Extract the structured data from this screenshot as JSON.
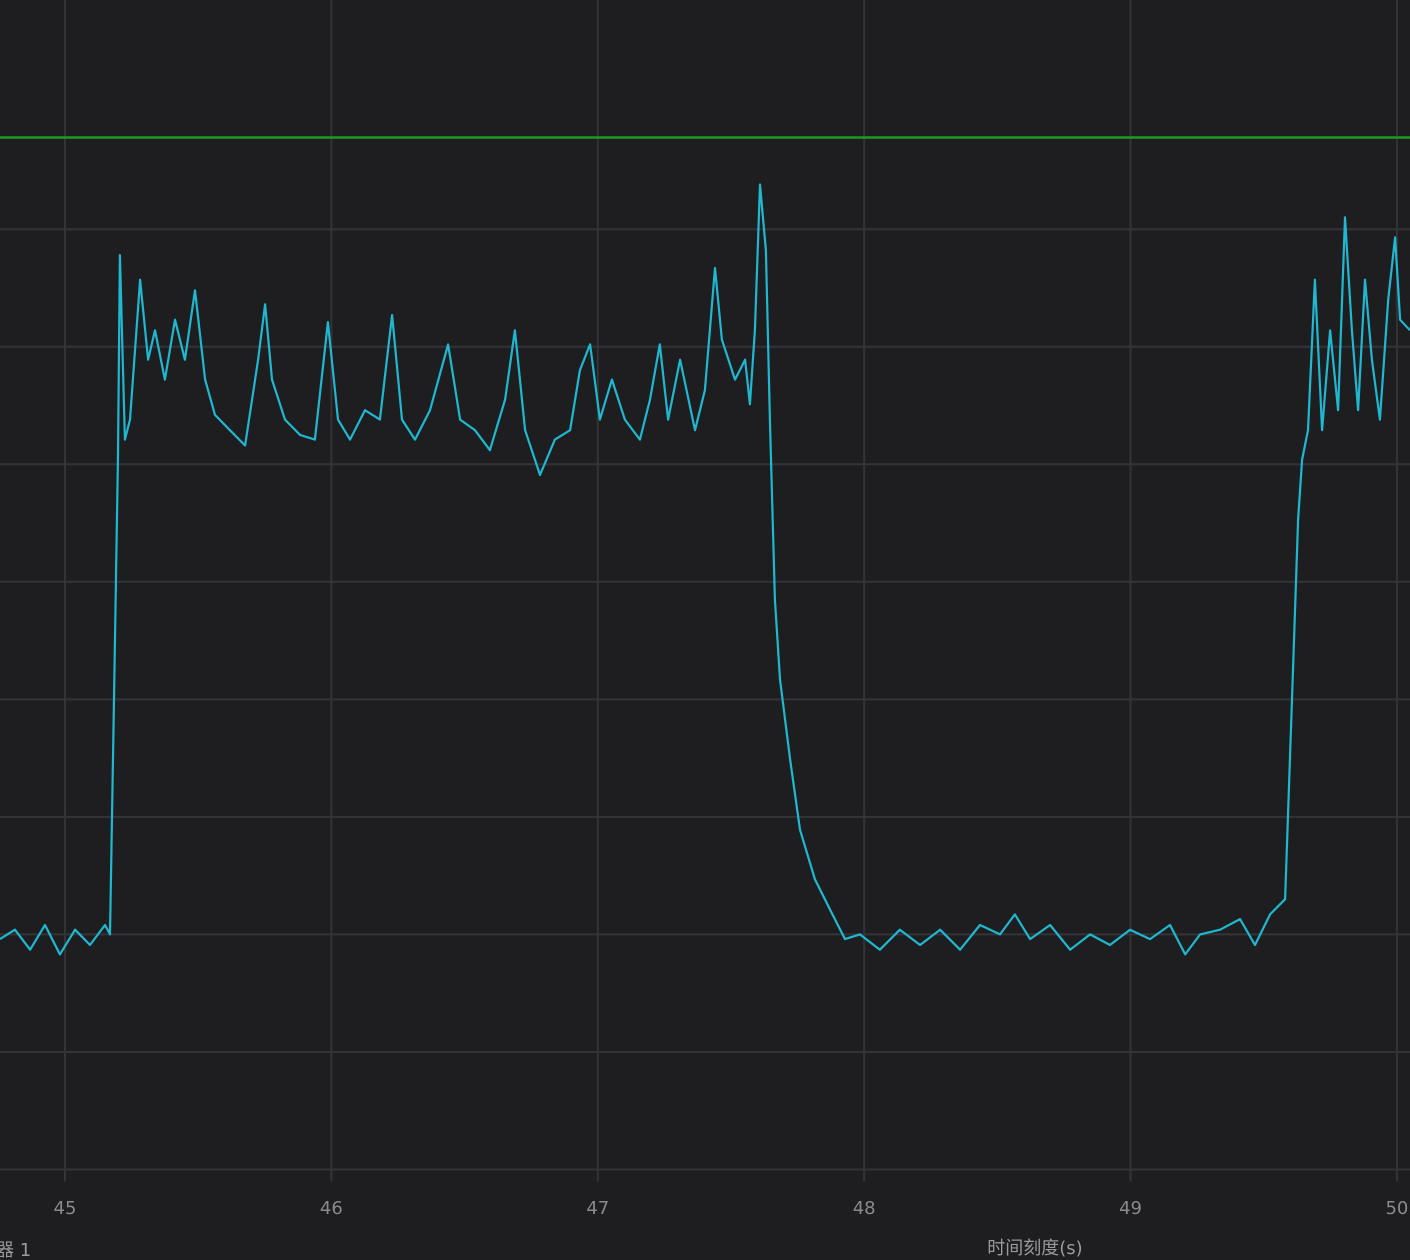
{
  "chart_data": {
    "type": "line",
    "title": "",
    "xlabel": "时间刻度(s)",
    "ylabel": "",
    "corner_label": "器 1",
    "xlim": [
      44.756,
      50.049
    ],
    "ylim": [
      -0.77,
      9.95
    ],
    "x_ticks": [
      45,
      46,
      47,
      48,
      49,
      50
    ],
    "x_tick_labels": [
      "45",
      "46",
      "47",
      "48",
      "49",
      "50"
    ],
    "y_gridlines": [
      0,
      1,
      2,
      3,
      4,
      5,
      6,
      7,
      8
    ],
    "grid": true,
    "legend": "none",
    "threshold": {
      "y": 8.78,
      "color": "#1f9a1f"
    },
    "colors": {
      "background": "#1e1e21",
      "grid": "#343438",
      "series": "#1fb8d0"
    },
    "series": [
      {
        "points": [
          [
            44.756,
            1.96
          ],
          [
            44.812,
            2.04
          ],
          [
            44.869,
            1.87
          ],
          [
            44.925,
            2.08
          ],
          [
            44.981,
            1.83
          ],
          [
            45.038,
            2.04
          ],
          [
            45.094,
            1.91
          ],
          [
            45.15,
            2.08
          ],
          [
            45.169,
            2.0
          ],
          [
            45.184,
            4.0
          ],
          [
            45.199,
            6.08
          ],
          [
            45.206,
            7.78
          ],
          [
            45.225,
            6.21
          ],
          [
            45.244,
            6.38
          ],
          [
            45.282,
            7.57
          ],
          [
            45.312,
            6.89
          ],
          [
            45.338,
            7.14
          ],
          [
            45.375,
            6.72
          ],
          [
            45.413,
            7.23
          ],
          [
            45.45,
            6.89
          ],
          [
            45.488,
            7.48
          ],
          [
            45.526,
            6.72
          ],
          [
            45.563,
            6.42
          ],
          [
            45.619,
            6.29
          ],
          [
            45.676,
            6.16
          ],
          [
            45.725,
            6.89
          ],
          [
            45.751,
            7.36
          ],
          [
            45.777,
            6.72
          ],
          [
            45.826,
            6.38
          ],
          [
            45.882,
            6.25
          ],
          [
            45.938,
            6.21
          ],
          [
            45.987,
            7.21
          ],
          [
            46.025,
            6.38
          ],
          [
            46.07,
            6.21
          ],
          [
            46.126,
            6.46
          ],
          [
            46.182,
            6.38
          ],
          [
            46.228,
            7.27
          ],
          [
            46.265,
            6.38
          ],
          [
            46.314,
            6.21
          ],
          [
            46.37,
            6.46
          ],
          [
            46.438,
            7.02
          ],
          [
            46.483,
            6.38
          ],
          [
            46.539,
            6.29
          ],
          [
            46.595,
            6.12
          ],
          [
            46.652,
            6.55
          ],
          [
            46.689,
            7.14
          ],
          [
            46.727,
            6.29
          ],
          [
            46.783,
            5.91
          ],
          [
            46.839,
            6.21
          ],
          [
            46.896,
            6.29
          ],
          [
            46.933,
            6.8
          ],
          [
            46.971,
            7.02
          ],
          [
            47.008,
            6.38
          ],
          [
            47.053,
            6.72
          ],
          [
            47.102,
            6.38
          ],
          [
            47.158,
            6.21
          ],
          [
            47.196,
            6.55
          ],
          [
            47.233,
            7.02
          ],
          [
            47.264,
            6.38
          ],
          [
            47.309,
            6.89
          ],
          [
            47.365,
            6.29
          ],
          [
            47.402,
            6.63
          ],
          [
            47.44,
            7.67
          ],
          [
            47.466,
            7.06
          ],
          [
            47.515,
            6.72
          ],
          [
            47.553,
            6.89
          ],
          [
            47.571,
            6.51
          ],
          [
            47.59,
            7.14
          ],
          [
            47.609,
            8.38
          ],
          [
            47.631,
            7.82
          ],
          [
            47.646,
            6.38
          ],
          [
            47.665,
            4.85
          ],
          [
            47.684,
            4.17
          ],
          [
            47.722,
            3.49
          ],
          [
            47.759,
            2.89
          ],
          [
            47.815,
            2.47
          ],
          [
            47.872,
            2.21
          ],
          [
            47.928,
            1.96
          ],
          [
            47.984,
            2.0
          ],
          [
            48.059,
            1.87
          ],
          [
            48.134,
            2.04
          ],
          [
            48.21,
            1.91
          ],
          [
            48.285,
            2.04
          ],
          [
            48.36,
            1.87
          ],
          [
            48.435,
            2.08
          ],
          [
            48.51,
            2.0
          ],
          [
            48.566,
            2.17
          ],
          [
            48.623,
            1.96
          ],
          [
            48.698,
            2.08
          ],
          [
            48.773,
            1.87
          ],
          [
            48.848,
            2.0
          ],
          [
            48.923,
            1.91
          ],
          [
            48.998,
            2.04
          ],
          [
            49.073,
            1.96
          ],
          [
            49.148,
            2.08
          ],
          [
            49.205,
            1.83
          ],
          [
            49.261,
            2.0
          ],
          [
            49.336,
            2.04
          ],
          [
            49.411,
            2.13
          ],
          [
            49.467,
            1.91
          ],
          [
            49.524,
            2.17
          ],
          [
            49.58,
            2.3
          ],
          [
            49.606,
            4.0
          ],
          [
            49.629,
            5.53
          ],
          [
            49.644,
            6.04
          ],
          [
            49.666,
            6.29
          ],
          [
            49.692,
            7.57
          ],
          [
            49.719,
            6.29
          ],
          [
            49.749,
            7.14
          ],
          [
            49.779,
            6.46
          ],
          [
            49.805,
            8.1
          ],
          [
            49.831,
            7.14
          ],
          [
            49.854,
            6.46
          ],
          [
            49.88,
            7.57
          ],
          [
            49.906,
            6.89
          ],
          [
            49.936,
            6.38
          ],
          [
            49.967,
            7.4
          ],
          [
            49.993,
            7.93
          ],
          [
            50.012,
            7.23
          ],
          [
            50.049,
            7.14
          ]
        ]
      }
    ]
  }
}
